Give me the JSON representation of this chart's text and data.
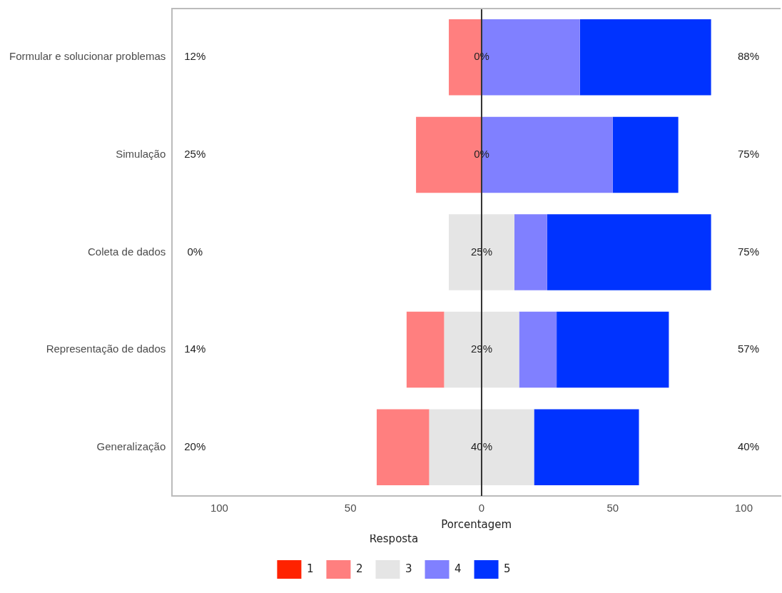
{
  "chart_data": {
    "type": "bar",
    "orientation": "horizontal",
    "xlabel": "Porcentagem",
    "legend_title": "Resposta",
    "legend": "bottom",
    "grid": false,
    "categories": [
      "Formular e solucionar problemas",
      "Simulação",
      "Coleta de dados",
      "Representação de dados",
      "Generalização"
    ],
    "xlim": [
      -118,
      114
    ],
    "xticks": [
      {
        "value": -100,
        "label": "100"
      },
      {
        "value": -50,
        "label": "50"
      },
      0,
      50,
      100
    ],
    "series": [
      {
        "name": "1",
        "color": "#ff2200",
        "values": [
          null,
          null,
          null,
          null,
          null
        ],
        "base": [
          null,
          null,
          null,
          null,
          null
        ]
      },
      {
        "name": "2",
        "color": "#ff7f7f",
        "values": [
          12.5,
          25,
          null,
          14.3,
          20
        ],
        "base": [
          -12.5,
          -25,
          null,
          -28.6,
          -40
        ]
      },
      {
        "name": "3",
        "color": "#e5e5e5",
        "values": [
          null,
          null,
          25,
          28.6,
          40
        ],
        "base": [
          null,
          null,
          -12.5,
          -14.3,
          -20
        ]
      },
      {
        "name": "4",
        "color": "#8080ff",
        "values": [
          37.5,
          50,
          12.5,
          14.3,
          null
        ],
        "base": [
          0,
          0,
          12.5,
          14.3,
          null
        ]
      },
      {
        "name": "5",
        "color": "#0033ff",
        "values": [
          50,
          25,
          62.5,
          42.8,
          40
        ],
        "base": [
          37.5,
          50,
          25,
          28.6,
          20
        ]
      }
    ],
    "ref_lines": [
      {
        "axis": "x",
        "value": 0,
        "color": "#333333"
      }
    ],
    "annotations": [
      "12%",
      "0%",
      "88%",
      "25%",
      "0%",
      "75%",
      "0%",
      "25%",
      "75%",
      "14%",
      "29%",
      "57%",
      "20%",
      "40%",
      "40%"
    ]
  }
}
